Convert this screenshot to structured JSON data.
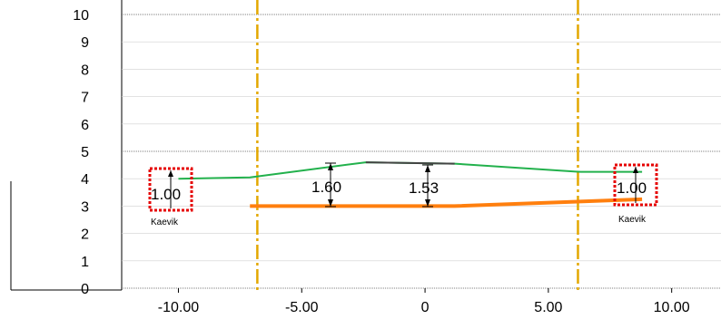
{
  "y_axis_ticks": [
    "0",
    "1",
    "2",
    "3",
    "4",
    "5",
    "6",
    "7",
    "8",
    "9",
    "10"
  ],
  "x_axis_ticks": [
    {
      "label": "-10.00",
      "value": -10
    },
    {
      "label": "-5.00",
      "value": -5
    },
    {
      "label": "0",
      "value": 0
    },
    {
      "label": "5.00",
      "value": 5
    },
    {
      "label": "10.00",
      "value": 10
    }
  ],
  "x_range": [
    -12.3,
    12.0
  ],
  "y_range": [
    0,
    10
  ],
  "dimensions": {
    "left_ditch": "1.00",
    "center_left": "1.60",
    "center_right": "1.53",
    "right_ditch": "1.00"
  },
  "ditch_labels": {
    "left": "Kaevik",
    "right": "Kaevik"
  },
  "colors": {
    "ground_line": "#22b14c",
    "design_line": "#ff7f0e",
    "road_surface": "#444444",
    "boundary_line": "#e3a800",
    "ditch_marker": "#e60000",
    "grid": "#999999"
  },
  "ground_line": [
    {
      "x": -10,
      "y": 4.0
    },
    {
      "x": -7.1,
      "y": 4.05
    },
    {
      "x": -2.4,
      "y": 4.6
    },
    {
      "x": 1.2,
      "y": 4.55
    },
    {
      "x": 6.3,
      "y": 4.25
    },
    {
      "x": 8.8,
      "y": 4.25
    }
  ],
  "road_surface": [
    {
      "x": -2.4,
      "y": 4.6
    },
    {
      "x": 1.2,
      "y": 4.55
    }
  ],
  "design_line": [
    {
      "x": -7.1,
      "y": 3.0
    },
    {
      "x": 1.2,
      "y": 3.0
    },
    {
      "x": 8.8,
      "y": 3.25
    }
  ],
  "boundary_lines_x": [
    -6.8,
    6.2
  ],
  "ditch_marker_x": [
    -8.0,
    8.7
  ]
}
